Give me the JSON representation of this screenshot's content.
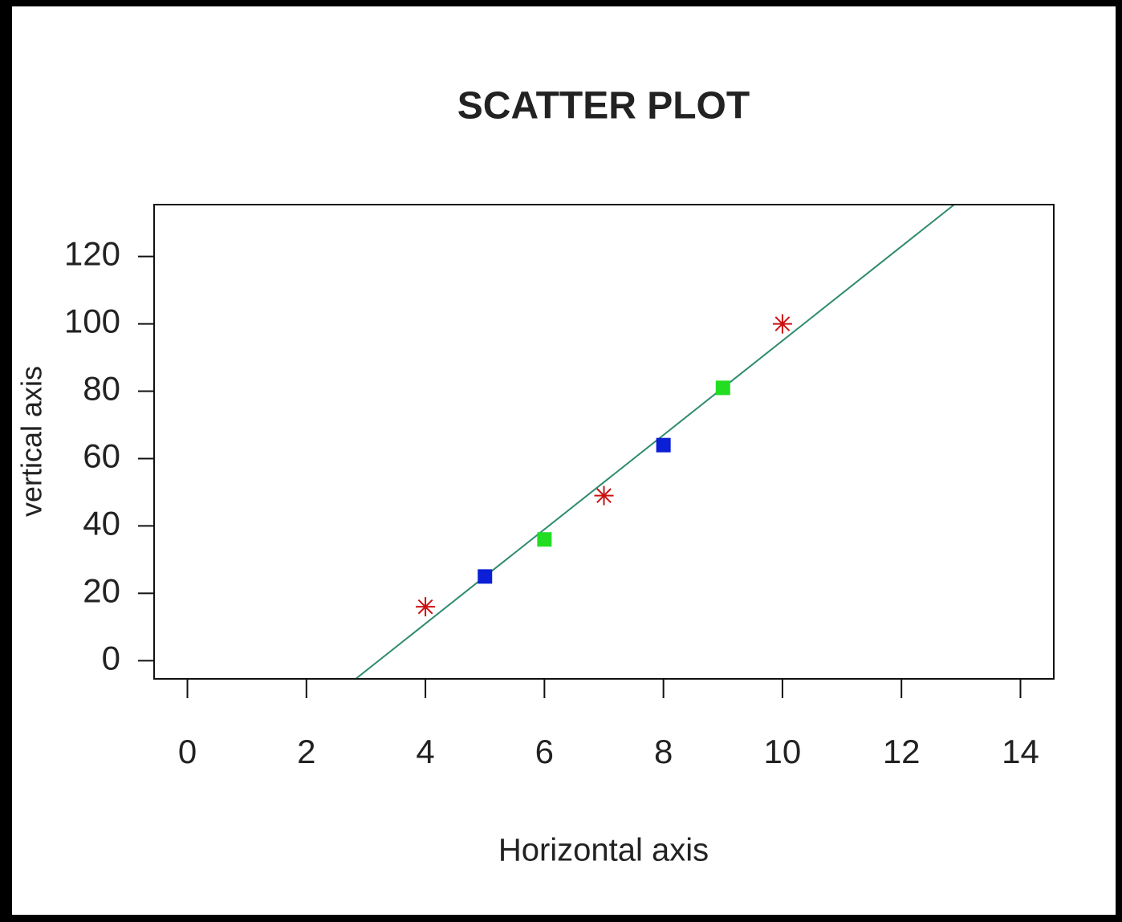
{
  "chart_data": {
    "type": "scatter",
    "title": "SCATTER PLOT",
    "x_label": "Horizontal axis",
    "y_label": "vertical axis",
    "x": [
      4,
      5,
      6,
      7,
      8,
      9,
      10
    ],
    "values": [
      16,
      25,
      36,
      49,
      64,
      81,
      100
    ],
    "colors": [
      "#cc1111",
      "#0a1fd6",
      "#22dd22",
      "#cc1111",
      "#0a1fd6",
      "#22dd22",
      "#cc1111"
    ],
    "shapes": [
      "star",
      "square",
      "square",
      "star",
      "square",
      "square",
      "star"
    ],
    "fit_line": {
      "slope": 14,
      "intercept": -45,
      "color": "#2e8b6f"
    },
    "xlim": [
      -0.56,
      14.56
    ],
    "ylim": [
      -5.4,
      135.4
    ],
    "xticks": [
      0,
      2,
      4,
      6,
      8,
      10,
      12,
      14
    ],
    "yticks": [
      0,
      20,
      40,
      60,
      80,
      100,
      120
    ]
  }
}
